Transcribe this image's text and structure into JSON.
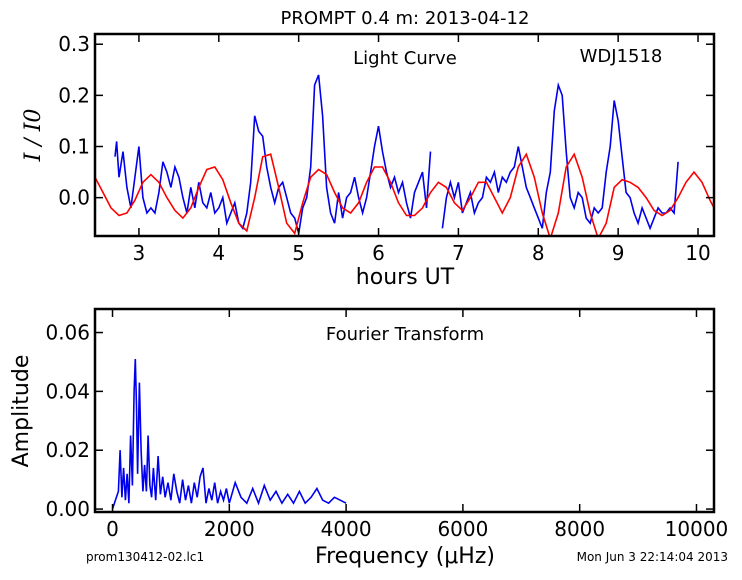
{
  "page": {
    "title": "PROMPT 0.4 m:  2013-04-12",
    "footer_left": "prom130412-02.lc1",
    "footer_right": "Mon Jun  3 22:14:04 2013"
  },
  "chart_data": [
    {
      "type": "line",
      "title": "Light Curve",
      "annotation": "WDJ1518",
      "xlabel": "hours UT",
      "ylabel": "I / I0",
      "xlim": [
        2.45,
        10.2
      ],
      "ylim": [
        -0.075,
        0.32
      ],
      "xticks": [
        3,
        4,
        5,
        6,
        7,
        8,
        9,
        10
      ],
      "yticks": [
        0.0,
        0.1,
        0.2,
        0.3
      ],
      "ytick_labels": [
        "0.0",
        "0.1",
        "0.2",
        "0.3"
      ],
      "grid": false,
      "series": [
        {
          "color": "#0000ee",
          "x": [
            2.7,
            2.72,
            2.75,
            2.8,
            2.85,
            2.9,
            2.95,
            3.0,
            3.05,
            3.1,
            3.15,
            3.2,
            3.25,
            3.3,
            3.35,
            3.4,
            3.45,
            3.5,
            3.55,
            3.6,
            3.65,
            3.7,
            3.75,
            3.8,
            3.85,
            3.9,
            3.95,
            4.0,
            4.05,
            4.1,
            4.15,
            4.2,
            4.25,
            4.3,
            4.35,
            4.4,
            4.45,
            4.5,
            4.55,
            4.6,
            4.65,
            4.7,
            4.75,
            4.8,
            4.85,
            4.9,
            4.95,
            5.0,
            5.05,
            5.1,
            5.15,
            5.2,
            5.25,
            5.3,
            5.35,
            5.4,
            5.45,
            5.5,
            5.55,
            5.6,
            5.65,
            5.7,
            5.75,
            5.8,
            5.85,
            5.9,
            5.95,
            6.0,
            6.05,
            6.1,
            6.15,
            6.2,
            6.25,
            6.3,
            6.35,
            6.4,
            6.45,
            6.5,
            6.55,
            6.6,
            6.65
          ],
          "y": [
            0.08,
            0.11,
            0.04,
            0.09,
            0.02,
            -0.02,
            0.04,
            0.1,
            0.0,
            -0.03,
            -0.02,
            -0.03,
            0.01,
            0.07,
            0.05,
            0.02,
            0.06,
            0.04,
            0.0,
            -0.03,
            0.02,
            -0.02,
            0.03,
            -0.01,
            -0.02,
            0.01,
            -0.03,
            -0.02,
            0.0,
            -0.05,
            -0.03,
            -0.01,
            -0.05,
            -0.06,
            -0.03,
            0.03,
            0.16,
            0.13,
            0.12,
            0.06,
            0.02,
            -0.01,
            0.02,
            0.03,
            0.0,
            -0.03,
            -0.04,
            -0.07,
            -0.02,
            0.0,
            0.06,
            0.22,
            0.24,
            0.16,
            0.02,
            -0.03,
            -0.05,
            0.01,
            -0.04,
            0.0,
            0.01,
            0.04,
            0.0,
            -0.03,
            0.0,
            0.05,
            0.1,
            0.14,
            0.09,
            0.05,
            0.02,
            0.04,
            0.01,
            0.03,
            -0.01,
            -0.04,
            0.01,
            0.03,
            0.05,
            -0.02,
            0.09
          ]
        },
        {
          "color": "#0000ee",
          "x": [
            6.8,
            6.85,
            6.9,
            6.95,
            7.0,
            7.05,
            7.1,
            7.15,
            7.2,
            7.25,
            7.3,
            7.35,
            7.4,
            7.45,
            7.5,
            7.55,
            7.6,
            7.65,
            7.7,
            7.75,
            7.8,
            7.85,
            7.9,
            7.95,
            8.0,
            8.05,
            8.1,
            8.15,
            8.2,
            8.25,
            8.3,
            8.35,
            8.4,
            8.45,
            8.5,
            8.55,
            8.6,
            8.65,
            8.7,
            8.75,
            8.8,
            8.85,
            8.9,
            8.95,
            9.0,
            9.05,
            9.1,
            9.15,
            9.2,
            9.25,
            9.3,
            9.35,
            9.4,
            9.45,
            9.5,
            9.55,
            9.6,
            9.65,
            9.7,
            9.75
          ],
          "y": [
            -0.06,
            0.0,
            0.03,
            0.0,
            0.03,
            -0.03,
            -0.01,
            0.01,
            -0.03,
            -0.01,
            0.0,
            0.04,
            0.03,
            0.05,
            0.01,
            0.04,
            0.03,
            0.05,
            0.06,
            0.1,
            0.06,
            0.02,
            0.0,
            -0.02,
            -0.04,
            -0.06,
            0.01,
            0.05,
            0.17,
            0.22,
            0.2,
            0.09,
            0.0,
            -0.02,
            0.01,
            0.0,
            -0.04,
            -0.05,
            -0.02,
            -0.03,
            -0.02,
            0.05,
            0.1,
            0.19,
            0.15,
            0.08,
            0.01,
            0.0,
            -0.03,
            -0.05,
            -0.02,
            -0.04,
            -0.06,
            -0.04,
            -0.02,
            -0.03,
            -0.03,
            -0.02,
            -0.03,
            0.07
          ]
        },
        {
          "color": "#ff0000",
          "x": [
            2.45,
            2.55,
            2.65,
            2.75,
            2.85,
            2.95,
            3.05,
            3.15,
            3.25,
            3.35,
            3.45,
            3.55,
            3.65,
            3.75,
            3.85,
            3.95,
            4.05,
            4.15,
            4.25,
            4.35,
            4.45,
            4.55,
            4.65,
            4.75,
            4.85,
            4.95,
            5.05,
            5.15,
            5.25,
            5.35,
            5.45,
            5.55,
            5.65,
            5.75,
            5.85,
            5.95,
            6.05,
            6.15,
            6.25,
            6.35,
            6.45,
            6.55,
            6.65,
            6.75,
            6.85,
            6.95,
            7.05,
            7.15,
            7.25,
            7.35,
            7.45,
            7.55,
            7.65,
            7.75,
            7.85,
            7.95,
            8.05,
            8.15,
            8.25,
            8.35,
            8.45,
            8.55,
            8.65,
            8.75,
            8.85,
            8.95,
            9.05,
            9.15,
            9.25,
            9.35,
            9.45,
            9.55,
            9.65,
            9.75,
            9.85,
            9.95,
            10.05,
            10.15,
            10.2
          ],
          "y": [
            0.04,
            0.01,
            -0.02,
            -0.035,
            -0.03,
            -0.005,
            0.03,
            0.045,
            0.03,
            0.0,
            -0.025,
            -0.04,
            -0.02,
            0.02,
            0.055,
            0.06,
            0.035,
            -0.01,
            -0.05,
            -0.065,
            0.0,
            0.08,
            0.085,
            0.02,
            -0.05,
            -0.07,
            -0.01,
            0.04,
            0.055,
            0.045,
            0.01,
            -0.02,
            -0.03,
            -0.01,
            0.03,
            0.06,
            0.06,
            0.03,
            -0.01,
            -0.035,
            -0.035,
            -0.02,
            0.01,
            0.03,
            0.02,
            -0.01,
            -0.025,
            0.0,
            0.03,
            0.03,
            0.0,
            -0.03,
            0.0,
            0.06,
            0.085,
            0.04,
            -0.03,
            -0.08,
            -0.03,
            0.06,
            0.085,
            0.04,
            -0.03,
            -0.08,
            -0.05,
            0.02,
            0.035,
            0.03,
            0.02,
            0.0,
            -0.025,
            -0.035,
            -0.025,
            0.0,
            0.03,
            0.05,
            0.03,
            -0.005,
            -0.02
          ]
        }
      ]
    },
    {
      "type": "line",
      "title": "Fourier Transform",
      "xlabel": "Frequency (μHz)",
      "ylabel": "Amplitude",
      "xlim": [
        -300,
        10300
      ],
      "ylim": [
        -0.001,
        0.068
      ],
      "xticks": [
        0,
        2000,
        4000,
        6000,
        8000,
        10000
      ],
      "yticks": [
        0.0,
        0.02,
        0.04,
        0.06
      ],
      "ytick_labels": [
        "0.00",
        "0.02",
        "0.04",
        "0.06"
      ],
      "grid": false,
      "series": [
        {
          "color": "#0000ee",
          "x": [
            0,
            50,
            100,
            130,
            160,
            190,
            220,
            250,
            280,
            310,
            340,
            370,
            390,
            410,
            430,
            460,
            490,
            520,
            550,
            580,
            610,
            640,
            670,
            700,
            740,
            780,
            820,
            860,
            900,
            950,
            1000,
            1050,
            1100,
            1150,
            1200,
            1250,
            1300,
            1350,
            1400,
            1450,
            1500,
            1550,
            1600,
            1650,
            1700,
            1750,
            1800,
            1850,
            1900,
            1950,
            2000,
            2100,
            2200,
            2300,
            2400,
            2500,
            2600,
            2700,
            2800,
            2900,
            3000,
            3100,
            3200,
            3300,
            3400,
            3500,
            3600,
            3700,
            3800,
            3900,
            4000
          ],
          "y": [
            0.0,
            0.003,
            0.006,
            0.02,
            0.004,
            0.014,
            0.003,
            0.012,
            0.002,
            0.025,
            0.008,
            0.04,
            0.051,
            0.035,
            0.012,
            0.043,
            0.02,
            0.006,
            0.015,
            0.006,
            0.025,
            0.008,
            0.004,
            0.014,
            0.003,
            0.018,
            0.005,
            0.011,
            0.004,
            0.009,
            0.003,
            0.012,
            0.006,
            0.002,
            0.01,
            0.003,
            0.008,
            0.002,
            0.009,
            0.004,
            0.011,
            0.014,
            0.002,
            0.007,
            0.003,
            0.009,
            0.002,
            0.006,
            0.003,
            0.007,
            0.002,
            0.009,
            0.004,
            0.002,
            0.007,
            0.002,
            0.008,
            0.003,
            0.006,
            0.002,
            0.005,
            0.002,
            0.006,
            0.002,
            0.004,
            0.007,
            0.003,
            0.002,
            0.004,
            0.003,
            0.002
          ]
        }
      ]
    }
  ]
}
